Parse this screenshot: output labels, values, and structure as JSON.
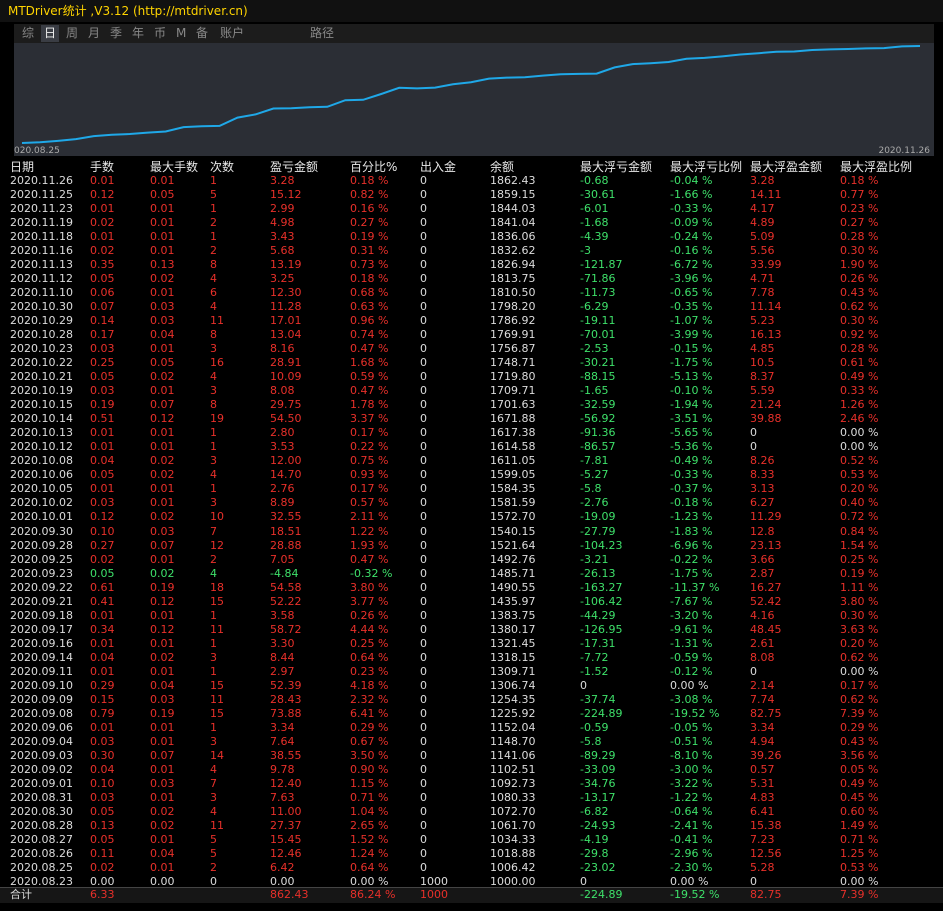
{
  "window": {
    "title": "MTDriver统计 ,V3.12 (http://mtdriver.cn)"
  },
  "tabs": [
    "综",
    "日",
    "周",
    "月",
    "季",
    "年",
    "币",
    "M",
    "备",
    "账户",
    "路径"
  ],
  "chart": {
    "x_labels": [
      "020.08.25",
      "2020.11.26"
    ]
  },
  "table": {
    "headers": [
      "日期",
      "手数",
      "最大手数",
      "次数",
      "盈亏金额",
      "百分比%",
      "出入金",
      "余额",
      "最大浮亏金额",
      "最大浮亏比例",
      "最大浮盈金额",
      "最大浮盈比例"
    ],
    "rows": [
      [
        "2020.11.26",
        "0.01",
        "0.01",
        "1",
        "3.28",
        "0.18 %",
        "0",
        "1862.43",
        "-0.68",
        "-0.04 %",
        "3.28",
        "0.18 %"
      ],
      [
        "2020.11.25",
        "0.12",
        "0.05",
        "5",
        "15.12",
        "0.82 %",
        "0",
        "1859.15",
        "-30.61",
        "-1.66 %",
        "14.11",
        "0.77 %"
      ],
      [
        "2020.11.23",
        "0.01",
        "0.01",
        "1",
        "2.99",
        "0.16 %",
        "0",
        "1844.03",
        "-6.01",
        "-0.33 %",
        "4.17",
        "0.23 %"
      ],
      [
        "2020.11.19",
        "0.02",
        "0.01",
        "2",
        "4.98",
        "0.27 %",
        "0",
        "1841.04",
        "-1.68",
        "-0.09 %",
        "4.89",
        "0.27 %"
      ],
      [
        "2020.11.18",
        "0.01",
        "0.01",
        "1",
        "3.43",
        "0.19 %",
        "0",
        "1836.06",
        "-4.39",
        "-0.24 %",
        "5.09",
        "0.28 %"
      ],
      [
        "2020.11.16",
        "0.02",
        "0.01",
        "2",
        "5.68",
        "0.31 %",
        "0",
        "1832.62",
        "-3",
        "-0.16 %",
        "5.56",
        "0.30 %"
      ],
      [
        "2020.11.13",
        "0.35",
        "0.13",
        "8",
        "13.19",
        "0.73 %",
        "0",
        "1826.94",
        "-121.87",
        "-6.72 %",
        "33.99",
        "1.90 %"
      ],
      [
        "2020.11.12",
        "0.05",
        "0.02",
        "4",
        "3.25",
        "0.18 %",
        "0",
        "1813.75",
        "-71.86",
        "-3.96 %",
        "4.71",
        "0.26 %"
      ],
      [
        "2020.11.10",
        "0.06",
        "0.01",
        "6",
        "12.30",
        "0.68 %",
        "0",
        "1810.50",
        "-11.73",
        "-0.65 %",
        "7.78",
        "0.43 %"
      ],
      [
        "2020.10.30",
        "0.07",
        "0.03",
        "4",
        "11.28",
        "0.63 %",
        "0",
        "1798.20",
        "-6.29",
        "-0.35 %",
        "11.14",
        "0.62 %"
      ],
      [
        "2020.10.29",
        "0.14",
        "0.03",
        "11",
        "17.01",
        "0.96 %",
        "0",
        "1786.92",
        "-19.11",
        "-1.07 %",
        "5.23",
        "0.30 %"
      ],
      [
        "2020.10.28",
        "0.17",
        "0.04",
        "8",
        "13.04",
        "0.74 %",
        "0",
        "1769.91",
        "-70.01",
        "-3.99 %",
        "16.13",
        "0.92 %"
      ],
      [
        "2020.10.23",
        "0.03",
        "0.01",
        "3",
        "8.16",
        "0.47 %",
        "0",
        "1756.87",
        "-2.53",
        "-0.15 %",
        "4.85",
        "0.28 %"
      ],
      [
        "2020.10.22",
        "0.25",
        "0.05",
        "16",
        "28.91",
        "1.68 %",
        "0",
        "1748.71",
        "-30.21",
        "-1.75 %",
        "10.5",
        "0.61 %"
      ],
      [
        "2020.10.21",
        "0.05",
        "0.02",
        "4",
        "10.09",
        "0.59 %",
        "0",
        "1719.80",
        "-88.15",
        "-5.13 %",
        "8.37",
        "0.49 %"
      ],
      [
        "2020.10.19",
        "0.03",
        "0.01",
        "3",
        "8.08",
        "0.47 %",
        "0",
        "1709.71",
        "-1.65",
        "-0.10 %",
        "5.59",
        "0.33 %"
      ],
      [
        "2020.10.15",
        "0.19",
        "0.07",
        "8",
        "29.75",
        "1.78 %",
        "0",
        "1701.63",
        "-32.59",
        "-1.94 %",
        "21.24",
        "1.26 %"
      ],
      [
        "2020.10.14",
        "0.51",
        "0.12",
        "19",
        "54.50",
        "3.37 %",
        "0",
        "1671.88",
        "-56.92",
        "-3.51 %",
        "39.88",
        "2.46 %"
      ],
      [
        "2020.10.13",
        "0.01",
        "0.01",
        "1",
        "2.80",
        "0.17 %",
        "0",
        "1617.38",
        "-91.36",
        "-5.65 %",
        "0",
        "0.00 %"
      ],
      [
        "2020.10.12",
        "0.01",
        "0.01",
        "1",
        "3.53",
        "0.22 %",
        "0",
        "1614.58",
        "-86.57",
        "-5.36 %",
        "0",
        "0.00 %"
      ],
      [
        "2020.10.08",
        "0.04",
        "0.02",
        "3",
        "12.00",
        "0.75 %",
        "0",
        "1611.05",
        "-7.81",
        "-0.49 %",
        "8.26",
        "0.52 %"
      ],
      [
        "2020.10.06",
        "0.05",
        "0.02",
        "4",
        "14.70",
        "0.93 %",
        "0",
        "1599.05",
        "-5.27",
        "-0.33 %",
        "8.33",
        "0.53 %"
      ],
      [
        "2020.10.05",
        "0.01",
        "0.01",
        "1",
        "2.76",
        "0.17 %",
        "0",
        "1584.35",
        "-5.8",
        "-0.37 %",
        "3.13",
        "0.20 %"
      ],
      [
        "2020.10.02",
        "0.03",
        "0.01",
        "3",
        "8.89",
        "0.57 %",
        "0",
        "1581.59",
        "-2.76",
        "-0.18 %",
        "6.27",
        "0.40 %"
      ],
      [
        "2020.10.01",
        "0.12",
        "0.02",
        "10",
        "32.55",
        "2.11 %",
        "0",
        "1572.70",
        "-19.09",
        "-1.23 %",
        "11.29",
        "0.72 %"
      ],
      [
        "2020.09.30",
        "0.10",
        "0.03",
        "7",
        "18.51",
        "1.22 %",
        "0",
        "1540.15",
        "-27.79",
        "-1.83 %",
        "12.8",
        "0.84 %"
      ],
      [
        "2020.09.28",
        "0.27",
        "0.07",
        "12",
        "28.88",
        "1.93 %",
        "0",
        "1521.64",
        "-104.23",
        "-6.96 %",
        "23.13",
        "1.54 %"
      ],
      [
        "2020.09.25",
        "0.02",
        "0.01",
        "2",
        "7.05",
        "0.47 %",
        "0",
        "1492.76",
        "-3.21",
        "-0.22 %",
        "3.66",
        "0.25 %"
      ],
      [
        "2020.09.23",
        "0.05",
        "0.02",
        "4",
        "-4.84",
        "-0.32 %",
        "0",
        "1485.71",
        "-26.13",
        "-1.75 %",
        "2.87",
        "0.19 %"
      ],
      [
        "2020.09.22",
        "0.61",
        "0.19",
        "18",
        "54.58",
        "3.80 %",
        "0",
        "1490.55",
        "-163.27",
        "-11.37 %",
        "16.27",
        "1.11 %"
      ],
      [
        "2020.09.21",
        "0.41",
        "0.12",
        "15",
        "52.22",
        "3.77 %",
        "0",
        "1435.97",
        "-106.42",
        "-7.67 %",
        "52.42",
        "3.80 %"
      ],
      [
        "2020.09.18",
        "0.01",
        "0.01",
        "1",
        "3.58",
        "0.26 %",
        "0",
        "1383.75",
        "-44.29",
        "-3.20 %",
        "4.16",
        "0.30 %"
      ],
      [
        "2020.09.17",
        "0.34",
        "0.12",
        "11",
        "58.72",
        "4.44 %",
        "0",
        "1380.17",
        "-126.95",
        "-9.61 %",
        "48.45",
        "3.63 %"
      ],
      [
        "2020.09.16",
        "0.01",
        "0.01",
        "1",
        "3.30",
        "0.25 %",
        "0",
        "1321.45",
        "-17.31",
        "-1.31 %",
        "2.61",
        "0.20 %"
      ],
      [
        "2020.09.14",
        "0.04",
        "0.02",
        "3",
        "8.44",
        "0.64 %",
        "0",
        "1318.15",
        "-7.72",
        "-0.59 %",
        "8.08",
        "0.62 %"
      ],
      [
        "2020.09.11",
        "0.01",
        "0.01",
        "1",
        "2.97",
        "0.23 %",
        "0",
        "1309.71",
        "-1.52",
        "-0.12 %",
        "0",
        "0.00 %"
      ],
      [
        "2020.09.10",
        "0.29",
        "0.04",
        "15",
        "52.39",
        "4.18 %",
        "0",
        "1306.74",
        "0",
        "0.00 %",
        "2.14",
        "0.17 %"
      ],
      [
        "2020.09.09",
        "0.15",
        "0.03",
        "11",
        "28.43",
        "2.32 %",
        "0",
        "1254.35",
        "-37.74",
        "-3.08 %",
        "7.74",
        "0.62 %"
      ],
      [
        "2020.09.08",
        "0.79",
        "0.19",
        "15",
        "73.88",
        "6.41 %",
        "0",
        "1225.92",
        "-224.89",
        "-19.52 %",
        "82.75",
        "7.39 %"
      ],
      [
        "2020.09.06",
        "0.01",
        "0.01",
        "1",
        "3.34",
        "0.29 %",
        "0",
        "1152.04",
        "-0.59",
        "-0.05 %",
        "3.34",
        "0.29 %"
      ],
      [
        "2020.09.04",
        "0.03",
        "0.01",
        "3",
        "7.64",
        "0.67 %",
        "0",
        "1148.70",
        "-5.8",
        "-0.51 %",
        "4.94",
        "0.43 %"
      ],
      [
        "2020.09.03",
        "0.30",
        "0.07",
        "14",
        "38.55",
        "3.50 %",
        "0",
        "1141.06",
        "-89.29",
        "-8.10 %",
        "39.26",
        "3.56 %"
      ],
      [
        "2020.09.02",
        "0.04",
        "0.01",
        "4",
        "9.78",
        "0.90 %",
        "0",
        "1102.51",
        "-33.09",
        "-3.00 %",
        "0.57",
        "0.05 %"
      ],
      [
        "2020.09.01",
        "0.10",
        "0.03",
        "7",
        "12.40",
        "1.15 %",
        "0",
        "1092.73",
        "-34.76",
        "-3.22 %",
        "5.31",
        "0.49 %"
      ],
      [
        "2020.08.31",
        "0.03",
        "0.01",
        "3",
        "7.63",
        "0.71 %",
        "0",
        "1080.33",
        "-13.17",
        "-1.22 %",
        "4.83",
        "0.45 %"
      ],
      [
        "2020.08.30",
        "0.05",
        "0.02",
        "4",
        "11.00",
        "1.04 %",
        "0",
        "1072.70",
        "-6.82",
        "-0.64 %",
        "6.41",
        "0.60 %"
      ],
      [
        "2020.08.28",
        "0.13",
        "0.02",
        "11",
        "27.37",
        "2.65 %",
        "0",
        "1061.70",
        "-24.93",
        "-2.41 %",
        "15.38",
        "1.49 %"
      ],
      [
        "2020.08.27",
        "0.05",
        "0.01",
        "5",
        "15.45",
        "1.52 %",
        "0",
        "1034.33",
        "-4.19",
        "-0.41 %",
        "7.23",
        "0.71 %"
      ],
      [
        "2020.08.26",
        "0.11",
        "0.04",
        "5",
        "12.46",
        "1.24 %",
        "0",
        "1018.88",
        "-29.8",
        "-2.96 %",
        "12.56",
        "1.25 %"
      ],
      [
        "2020.08.25",
        "0.02",
        "0.01",
        "2",
        "6.42",
        "0.64 %",
        "0",
        "1006.42",
        "-23.02",
        "-2.30 %",
        "5.28",
        "0.53 %"
      ],
      [
        "2020.08.23",
        "0.00",
        "0.00",
        "0",
        "0.00",
        "0.00 %",
        "1000",
        "1000.00",
        "0",
        "0.00 %",
        "0",
        "0.00 %"
      ]
    ],
    "total": [
      "合计",
      "6.33",
      "",
      "",
      "862.43",
      "86.24 %",
      "1000",
      "",
      "-224.89",
      "-19.52 %",
      "82.75",
      "7.39 %"
    ]
  }
}
